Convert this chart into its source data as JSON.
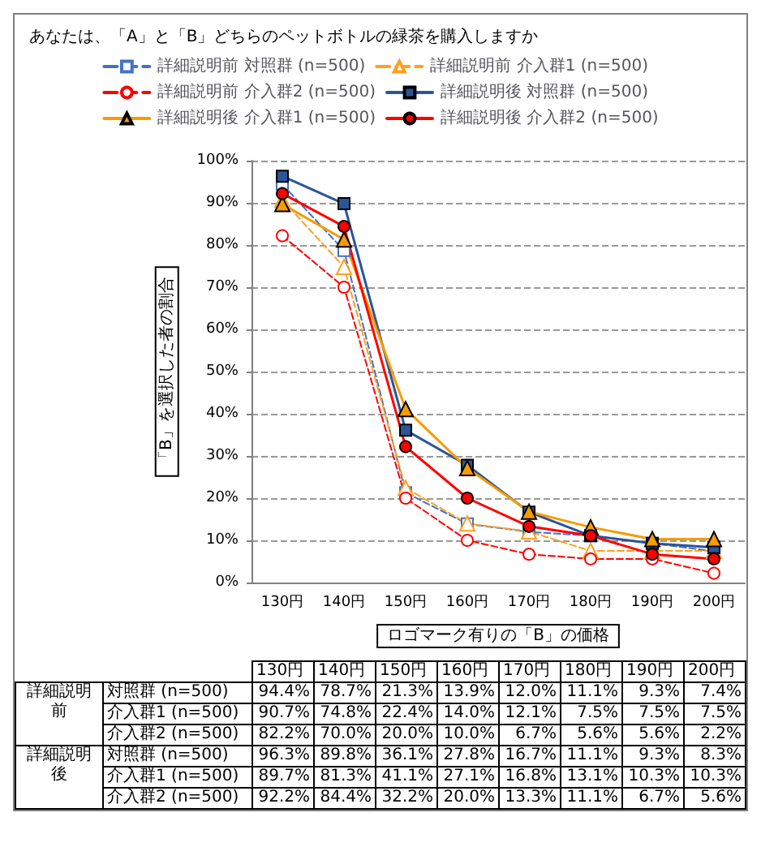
{
  "chart_data": {
    "type": "line",
    "title": "あなたは、「A」と「B」どちらのペットボトルの緑茶を購入しますか",
    "xlabel": "ロゴマーク有りの「B」の価格",
    "ylabel": "「B」を選択した者の割合",
    "categories": [
      "130円",
      "140円",
      "150円",
      "160円",
      "170円",
      "180円",
      "190円",
      "200円"
    ],
    "ylim": [
      0,
      100
    ],
    "yticks": [
      {
        "value": 0,
        "label": "0%"
      },
      {
        "value": 10,
        "label": "10%"
      },
      {
        "value": 20,
        "label": "20%"
      },
      {
        "value": 30,
        "label": "30%"
      },
      {
        "value": 40,
        "label": "40%"
      },
      {
        "value": 50,
        "label": "50%"
      },
      {
        "value": 60,
        "label": "60%"
      },
      {
        "value": 70,
        "label": "70%"
      },
      {
        "value": 80,
        "label": "80%"
      },
      {
        "value": 90,
        "label": "90%"
      },
      {
        "value": 100,
        "label": "100%"
      }
    ],
    "grid": "y",
    "legend": "top",
    "annotations": [
      "詳細説明前",
      "詳細説明後",
      "対照群 (n=500)",
      "介入群1 (n=500)",
      "介入群2 (n=500)"
    ],
    "series": [
      {
        "name": "詳細説明前 対照群 (n=500)",
        "color": "#4472c4",
        "marker": "square",
        "line_style": "dashed",
        "values": [
          94.4,
          78.7,
          21.3,
          13.9,
          12.0,
          11.1,
          9.3,
          7.4
        ],
        "value_labels": [
          "94.4%",
          "78.7%",
          "21.3%",
          "13.9%",
          "12.0%",
          "11.1%",
          "9.3%",
          "7.4%"
        ]
      },
      {
        "name": "詳細説明前 介入群1 (n=500)",
        "color": "#ffa020",
        "marker": "triangle",
        "line_style": "dashed",
        "values": [
          90.7,
          74.8,
          22.4,
          14.0,
          12.1,
          7.5,
          7.5,
          7.5
        ],
        "value_labels": [
          "90.7%",
          "74.8%",
          "22.4%",
          "14.0%",
          "12.1%",
          "7.5%",
          "7.5%",
          "7.5%"
        ]
      },
      {
        "name": "詳細説明前 介入群2 (n=500)",
        "color": "#ff0000",
        "marker": "circle",
        "line_style": "dashed",
        "values": [
          82.2,
          70.0,
          20.0,
          10.0,
          6.7,
          5.6,
          5.6,
          2.2
        ],
        "value_labels": [
          "82.2%",
          "70.0%",
          "20.0%",
          "10.0%",
          "6.7%",
          "5.6%",
          "5.6%",
          "2.2%"
        ]
      },
      {
        "name": "詳細説明後 対照群 (n=500)",
        "color": "#2a5599",
        "marker": "square",
        "line_style": "solid",
        "values": [
          96.3,
          89.8,
          36.1,
          27.8,
          16.7,
          11.1,
          9.3,
          8.3
        ],
        "value_labels": [
          "96.3%",
          "89.8%",
          "36.1%",
          "27.8%",
          "16.7%",
          "11.1%",
          "9.3%",
          "8.3%"
        ]
      },
      {
        "name": "詳細説明後 介入群1 (n=500)",
        "color": "#f59c00",
        "marker": "triangle",
        "line_style": "solid",
        "values": [
          89.7,
          81.3,
          41.1,
          27.1,
          16.8,
          13.1,
          10.3,
          10.3
        ],
        "value_labels": [
          "89.7%",
          "81.3%",
          "41.1%",
          "27.1%",
          "16.8%",
          "13.1%",
          "10.3%",
          "10.3%"
        ]
      },
      {
        "name": "詳細説明後 介入群2 (n=500)",
        "color": "#ff0000",
        "marker": "circle",
        "line_style": "solid",
        "values": [
          92.2,
          84.4,
          32.2,
          20.0,
          13.3,
          11.1,
          6.7,
          5.6
        ],
        "value_labels": [
          "92.2%",
          "84.4%",
          "32.2%",
          "20.0%",
          "13.3%",
          "11.1%",
          "6.7%",
          "5.6%"
        ]
      }
    ]
  }
}
